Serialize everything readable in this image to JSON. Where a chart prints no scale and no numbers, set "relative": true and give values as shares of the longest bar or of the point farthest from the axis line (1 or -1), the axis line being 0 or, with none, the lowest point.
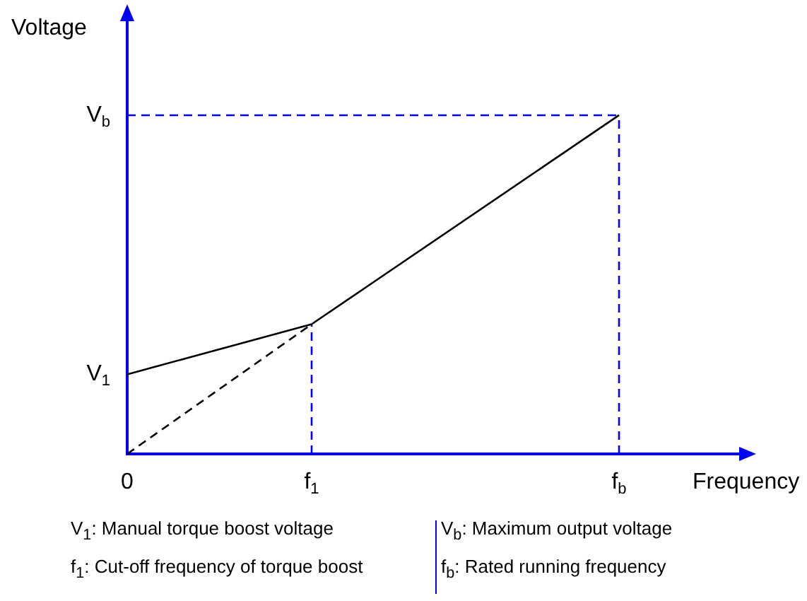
{
  "chart_data": {
    "type": "line",
    "relative": true,
    "xlabel": "Frequency",
    "ylabel": "Voltage",
    "grid": false,
    "legend": false,
    "marker": "none",
    "categories": [
      "0",
      null,
      null,
      "f$_{1}$",
      null,
      null,
      null,
      null,
      "f$_{b}$",
      null,
      null
    ],
    "series": [
      {
        "values": [
          0.235,
          null,
          null,
          0.383,
          null,
          null,
          null,
          null,
          1,
          null,
          null
        ],
        "color": "#000000",
        "line_style": "solid"
      },
      {
        "values": [
          0,
          null,
          null,
          0.383,
          null,
          null,
          null,
          null,
          null,
          null,
          null
        ],
        "color": "#000000",
        "line_style": "dashed"
      }
    ],
    "ref_lines": [
      {
        "axis": "x",
        "value": "f$_{1}$",
        "color": "#0000ff",
        "line_style": "dashed"
      },
      {
        "axis": "x",
        "value": "f$_{b}$",
        "color": "#0000ff",
        "line_style": "dashed"
      },
      {
        "axis": "y",
        "value": 1,
        "label": "V$_{b}$",
        "color": "#0000ff",
        "line_style": "dashed"
      }
    ],
    "annotations": [
      {
        "text": "V$_{1}$",
        "x": "0",
        "y": 0.235
      },
      "V$_{1}$: Manual torque boost voltage",
      "V$_{b}$: Maximum output voltage",
      "f$_{1}$: Cut-off frequency of torque boost",
      "f$_{b}$: Rated running frequency"
    ]
  }
}
